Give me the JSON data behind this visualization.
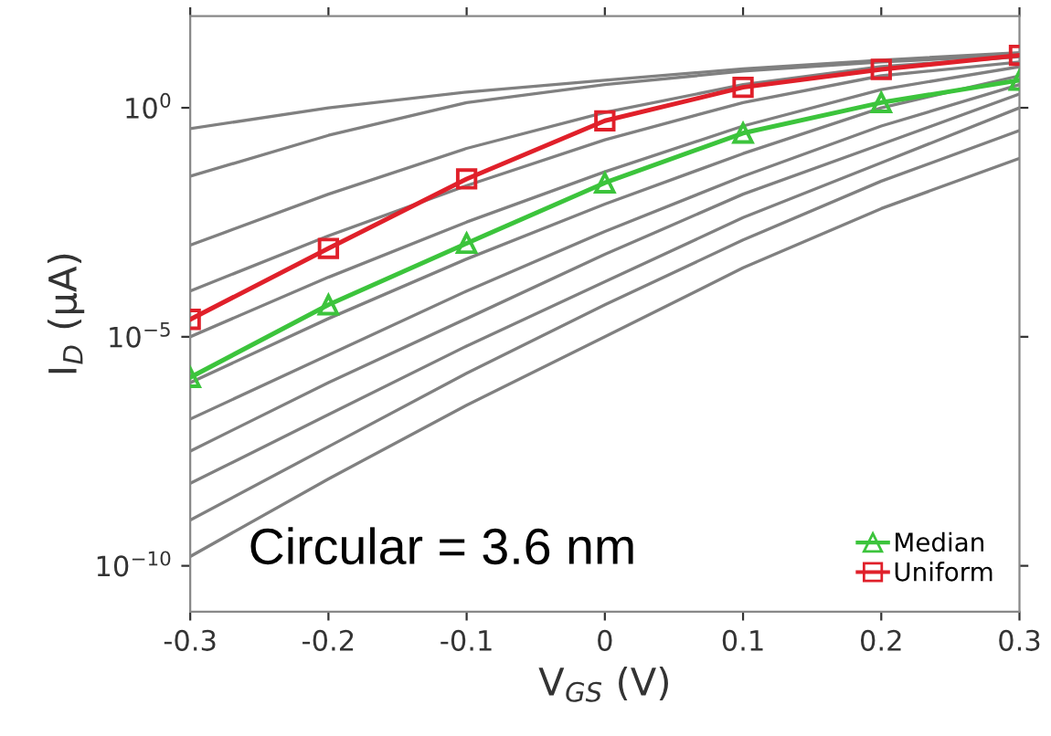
{
  "chart_data": {
    "type": "line",
    "xlabel": "V$_{GS}$ (V)",
    "ylabel": "I$_{D}$ (μA)",
    "annotations": [
      "Circular = 3.6 nm"
    ],
    "x": [
      -0.3,
      -0.2,
      -0.1,
      0,
      0.1,
      0.2,
      0.3
    ],
    "xlim": [
      -0.3,
      0.3
    ],
    "xticks": [
      -0.3,
      -0.2,
      -0.1,
      0,
      0.1,
      0.2,
      0.3
    ],
    "log": "y",
    "ylim": [
      1e-11,
      100
    ],
    "yticks": [
      {
        "value": 1e-10,
        "label": "10$^{−10}$"
      },
      {
        "value": 1e-05,
        "label": "10$^{−5}$"
      },
      {
        "value": 1,
        "label": "10$^{0}$"
      }
    ],
    "grid": false,
    "legend": "bottom right",
    "line_style": "solid",
    "series": [
      {
        "color": "#808080",
        "marker": "none",
        "values": [
          0.35,
          1,
          2.2,
          4.0,
          7.1,
          11,
          16
        ]
      },
      {
        "color": "#808080",
        "marker": "none",
        "values": [
          0.032,
          0.25,
          1.3,
          3.2,
          6.3,
          10,
          14
        ]
      },
      {
        "color": "#808080",
        "marker": "none",
        "values": [
          0.001,
          0.013,
          0.13,
          0.79,
          3.2,
          7.9,
          13
        ]
      },
      {
        "color": "#808080",
        "marker": "none",
        "values": [
          0.0001,
          0.0016,
          0.02,
          0.2,
          1.3,
          5.0,
          10
        ]
      },
      {
        "color": "#808080",
        "marker": "none",
        "values": [
          1e-05,
          0.0002,
          0.0032,
          0.04,
          0.4,
          2.5,
          7.9
        ]
      },
      {
        "color": "#808080",
        "marker": "none",
        "values": [
          1e-06,
          2.5e-05,
          0.0005,
          0.0079,
          0.1,
          1,
          5.0
        ]
      },
      {
        "color": "#808080",
        "marker": "none",
        "values": [
          1.6e-07,
          4e-06,
          0.0001,
          0.002,
          0.032,
          0.4,
          3.2
        ]
      },
      {
        "color": "#808080",
        "marker": "none",
        "values": [
          3.2e-08,
          1e-06,
          2.5e-05,
          0.00063,
          0.013,
          0.16,
          2.0
        ]
      },
      {
        "color": "#808080",
        "marker": "none",
        "values": [
          6.3e-09,
          2e-07,
          6.3e-06,
          0.00016,
          0.004,
          0.063,
          1.0
        ]
      },
      {
        "color": "#808080",
        "marker": "none",
        "values": [
          1e-09,
          4e-08,
          1.6e-06,
          5e-05,
          0.0013,
          0.025,
          0.32
        ]
      },
      {
        "color": "#808080",
        "marker": "none",
        "values": [
          1.6e-10,
          7.9e-09,
          3.2e-07,
          1e-05,
          0.00032,
          0.0063,
          0.079
        ]
      },
      {
        "name": "Median",
        "color": "#3cc43c",
        "marker": "triangle",
        "values": [
          1.3e-06,
          5e-05,
          0.0011,
          0.023,
          0.28,
          1.3,
          4.0
        ]
      },
      {
        "name": "Uniform",
        "color": "#e0202a",
        "marker": "square",
        "values": [
          2.4e-05,
          0.00085,
          0.028,
          0.52,
          2.8,
          6.9,
          14
        ]
      }
    ]
  }
}
